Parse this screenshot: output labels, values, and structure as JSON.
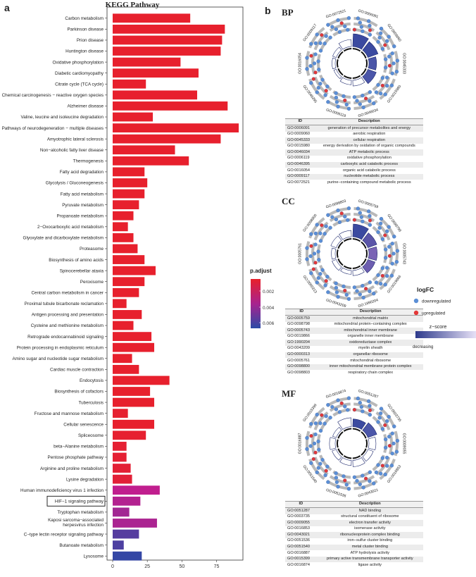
{
  "panel_a": {
    "letter": "a",
    "legend": {
      "title": "p.adjust",
      "ticks": [
        "0.002",
        "0.004",
        "0.006"
      ]
    },
    "highlighted": "HIF−1 signaling pathway",
    "colors": {
      "low": "#e8202a",
      "mid": "#c01e8e",
      "high": "#2b4aa6"
    }
  },
  "chart_data": {
    "type": "bar",
    "title": "KEGG Pathway",
    "xlabel": "",
    "ylabel": "",
    "xlim": [
      0,
      95
    ],
    "xticks": [
      "0",
      "25",
      "50",
      "75"
    ],
    "categories": [
      "Carbon metabolism",
      "Parkinson disease",
      "Prion disease",
      "Huntington disease",
      "Oxidative phosphorylation",
      "Diabetic cardiomyopathy",
      "Citrate cycle (TCA cycle)",
      "Chemical carcinogenesis − reactive oxygen species",
      "Alzheimer disease",
      "Valine, leucine and isoleucine degradation",
      "Pathways of neurodegeneration − multiple diseases",
      "Amyotrophic lateral sclerosis",
      "Non−alcoholic fatty liver disease",
      "Thermogenesis",
      "Fatty acid degradation",
      "Glycolysis / Gluconeogenesis",
      "Fatty acid metabolism",
      "Pyruvate metabolism",
      "Propanoate metabolism",
      "2−Oxocarboxylic acid metabolism",
      "Glyoxylate and dicarboxylate metabolism",
      "Proteasome",
      "Biosynthesis of amino acids",
      "Spinocerebellar ataxia",
      "Peroxisome",
      "Central carbon metabolism in cancer",
      "Proximal tubule bicarbonate reclamation",
      "Antigen processing and presentation",
      "Cysteine and methionine metabolism",
      "Retrograde endocannabinoid signaling",
      "Protein processing in endoplasmic reticulum",
      "Amino sugar and nucleotide sugar metabolism",
      "Cardiac muscle contraction",
      "Endocytosis",
      "Biosynthesis of cofactors",
      "Tuberculosis",
      "Fructose and mannose metabolism",
      "Cellular senescence",
      "Spliceosome",
      "beta−Alanine metabolism",
      "Pentose phosphate pathway",
      "Arginine and proline metabolism",
      "Lysine degradation",
      "Human immunodeficiency virus 1 infection",
      "HIF−1 signaling pathway",
      "Tryptophan metabolism",
      "Kaposi sarcoma−associated herpesvirus infection",
      "C−type lectin receptor signaling pathway",
      "Butanoate metabolism",
      "Lysosome"
    ],
    "values": [
      56,
      81,
      79,
      78,
      49,
      62,
      24,
      61,
      83,
      29,
      91,
      78,
      45,
      55,
      23,
      25,
      23,
      19,
      15,
      11,
      15,
      18,
      23,
      31,
      23,
      19,
      10,
      21,
      15,
      28,
      30,
      14,
      19,
      41,
      27,
      30,
      11,
      30,
      24,
      10,
      10,
      13,
      14,
      34,
      20,
      12,
      32,
      19,
      8,
      21
    ],
    "p_adjust": [
      0.0001,
      0.0001,
      0.0001,
      0.0001,
      0.0001,
      0.0001,
      0.0001,
      0.0001,
      0.0001,
      0.0001,
      0.0001,
      0.0001,
      0.0001,
      0.0001,
      0.0001,
      0.0001,
      0.0001,
      0.0001,
      0.0001,
      0.0001,
      0.0001,
      0.0001,
      0.0001,
      0.0001,
      0.0001,
      0.0001,
      0.0001,
      0.0001,
      0.0001,
      0.0001,
      0.0001,
      0.0001,
      0.0001,
      0.0001,
      0.0001,
      0.0001,
      0.0002,
      0.0001,
      0.0002,
      0.0003,
      0.0003,
      0.0004,
      0.0005,
      0.0035,
      0.0038,
      0.0042,
      0.004,
      0.006,
      0.0062,
      0.0068
    ]
  },
  "panel_b": {
    "letter": "b",
    "legend": {
      "logfc_title": "logFC",
      "down_label": "downregulated",
      "up_label": "upregulated",
      "zscore_title": "z−score",
      "decreasing": "decreasing",
      "increasing": "increasing",
      "down_color": "#5b8fd6",
      "up_color": "#e33838"
    },
    "table_headers": [
      "ID",
      "Description"
    ],
    "sections": [
      {
        "title": "BP",
        "terms": [
          {
            "id": "GO:0006091",
            "desc": "generation of precursor metabolites and energy"
          },
          {
            "id": "GO:0009060",
            "desc": "aerobic respiration"
          },
          {
            "id": "GO:0045333",
            "desc": "cellular respiration"
          },
          {
            "id": "GO:0015980",
            "desc": "energy derivation by oxidation of organic compounds"
          },
          {
            "id": "GO:0046034",
            "desc": "ATP metabolic process"
          },
          {
            "id": "GO:0006119",
            "desc": "oxidative phosphorylation"
          },
          {
            "id": "GO:0046395",
            "desc": "carboxylic acid catabolic process"
          },
          {
            "id": "GO:0016054",
            "desc": "organic acid catabolic process"
          },
          {
            "id": "GO:0009117",
            "desc": "nucleotide metabolic process"
          },
          {
            "id": "GO:0072521",
            "desc": "purine−containing compound metabolic process"
          }
        ]
      },
      {
        "title": "CC",
        "terms": [
          {
            "id": "GO:0005759",
            "desc": "mitochondrial matrix"
          },
          {
            "id": "GO:0098798",
            "desc": "mitochondrial protein−containing complex"
          },
          {
            "id": "GO:0005743",
            "desc": "mitochondrial inner membrane"
          },
          {
            "id": "GO:0019866",
            "desc": "organelle inner membrane"
          },
          {
            "id": "GO:1990204",
            "desc": "oxidoreductase complex"
          },
          {
            "id": "GO:0043209",
            "desc": "myelin sheath"
          },
          {
            "id": "GO:0000313",
            "desc": "organellar ribosome"
          },
          {
            "id": "GO:0005761",
            "desc": "mitochondrial ribosome"
          },
          {
            "id": "GO:0098800",
            "desc": "inner mitochondrial membrane protein complex"
          },
          {
            "id": "GO:0098803",
            "desc": "respiratory chain complex"
          }
        ]
      },
      {
        "title": "MF",
        "terms": [
          {
            "id": "GO:0051287",
            "desc": "NAD binding"
          },
          {
            "id": "GO:0003735",
            "desc": "structural constituent of ribosome"
          },
          {
            "id": "GO:0009055",
            "desc": "electron transfer activity"
          },
          {
            "id": "GO:0016853",
            "desc": "isomerase activity"
          },
          {
            "id": "GO:0043021",
            "desc": "ribonucleoprotein complex binding"
          },
          {
            "id": "GO:0051536",
            "desc": "iron−sulfur cluster binding"
          },
          {
            "id": "GO:0051540",
            "desc": "metal cluster binding"
          },
          {
            "id": "GO:0016887",
            "desc": "ATP hydrolysis activity"
          },
          {
            "id": "GO:0015399",
            "desc": "primary active transmembrane transporter activity"
          },
          {
            "id": "GO:0016874",
            "desc": "ligase activity"
          }
        ]
      }
    ]
  }
}
